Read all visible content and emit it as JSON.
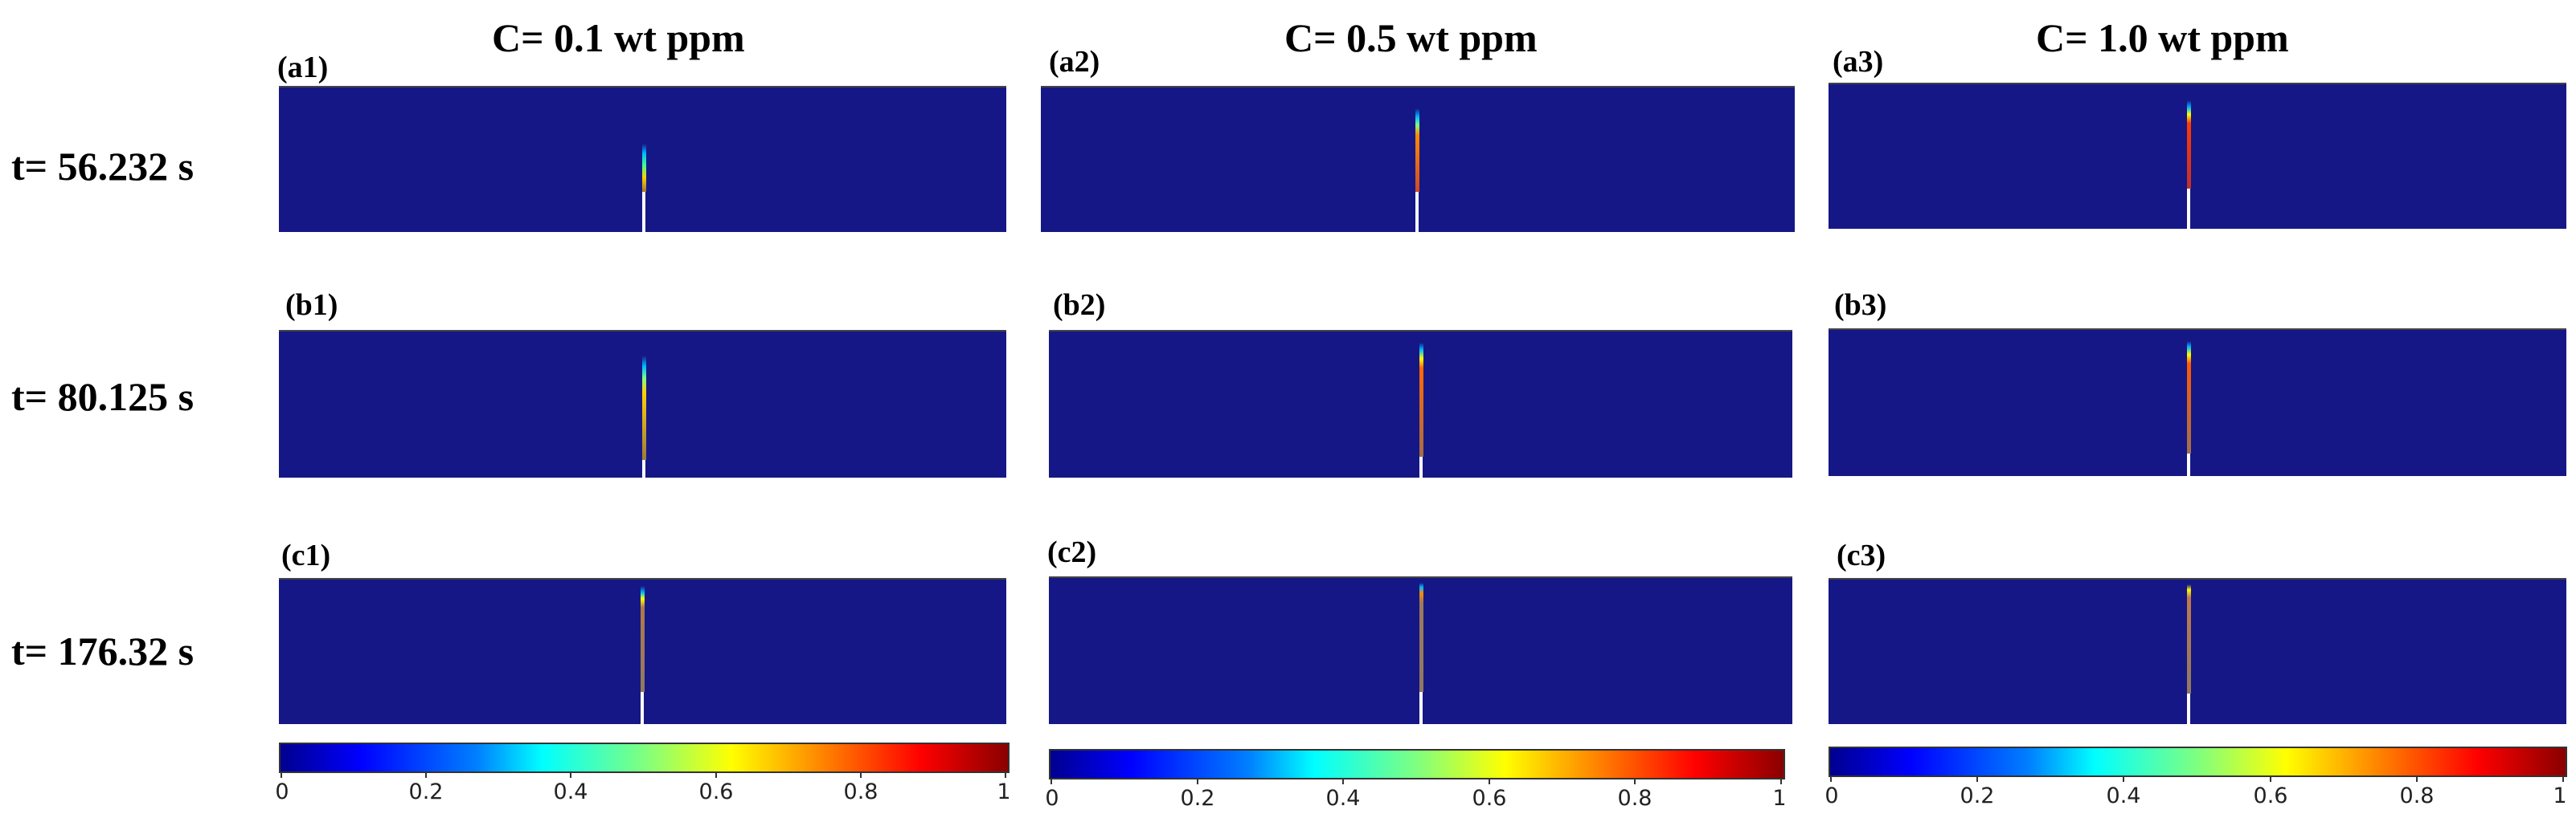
{
  "figure": {
    "columns": [
      {
        "title": "C= 0.1 wt ppm"
      },
      {
        "title": "C= 0.5 wt ppm"
      },
      {
        "title": "C= 1.0 wt ppm"
      }
    ],
    "rows": [
      {
        "label": "t= 56.232 s"
      },
      {
        "label": "t= 80.125 s"
      },
      {
        "label": "t= 176.32 s"
      }
    ],
    "panels": [
      [
        "(a1)",
        "(a2)",
        "(a3)"
      ],
      [
        "(b1)",
        "(b2)",
        "(b3)"
      ],
      [
        "(c1)",
        "(c2)",
        "(c3)"
      ]
    ],
    "colorbar": {
      "ticks": [
        "0",
        "0.2",
        "0.4",
        "0.6",
        "0.8",
        "1"
      ],
      "min": 0,
      "max": 1
    },
    "colors": {
      "background_field": "#161786",
      "crack": "#ffffff"
    }
  }
}
